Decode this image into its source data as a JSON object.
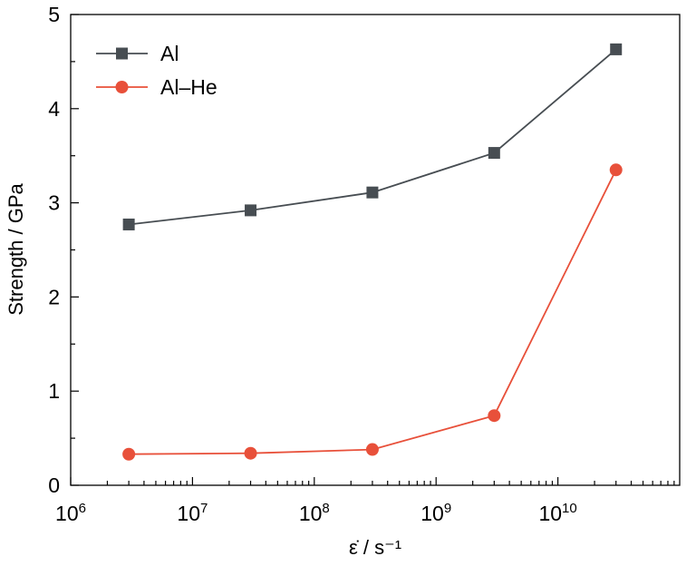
{
  "chart_data": {
    "type": "line",
    "title": "",
    "xlabel": "ε̇ / s⁻¹",
    "ylabel": "Strength / GPa",
    "xscale": "log",
    "xlim": [
      1000000,
      100000000000
    ],
    "ylim": [
      0,
      5
    ],
    "x_ticks": [
      {
        "value": 1000000,
        "base": "10",
        "exp": "6"
      },
      {
        "value": 10000000,
        "base": "10",
        "exp": "7"
      },
      {
        "value": 100000000,
        "base": "10",
        "exp": "8"
      },
      {
        "value": 1000000000,
        "base": "10",
        "exp": "9"
      },
      {
        "value": 10000000000,
        "base": "10",
        "exp": "10"
      }
    ],
    "y_ticks": [
      {
        "value": 0,
        "label": "0"
      },
      {
        "value": 1,
        "label": "1"
      },
      {
        "value": 2,
        "label": "2"
      },
      {
        "value": 3,
        "label": "3"
      },
      {
        "value": 4,
        "label": "4"
      },
      {
        "value": 5,
        "label": "5"
      }
    ],
    "grid": false,
    "legend_position": "top-left",
    "series": [
      {
        "name": "Al",
        "color": "#474d52",
        "marker": "square",
        "x": [
          3000000,
          30000000,
          300000000,
          3000000000,
          30000000000
        ],
        "y": [
          2.77,
          2.92,
          3.11,
          3.53,
          4.63
        ]
      },
      {
        "name": "Al–He",
        "color": "#e8503a",
        "marker": "circle",
        "x": [
          3000000,
          30000000,
          300000000,
          3000000000,
          30000000000
        ],
        "y": [
          0.33,
          0.34,
          0.38,
          0.74,
          3.35
        ]
      }
    ]
  }
}
